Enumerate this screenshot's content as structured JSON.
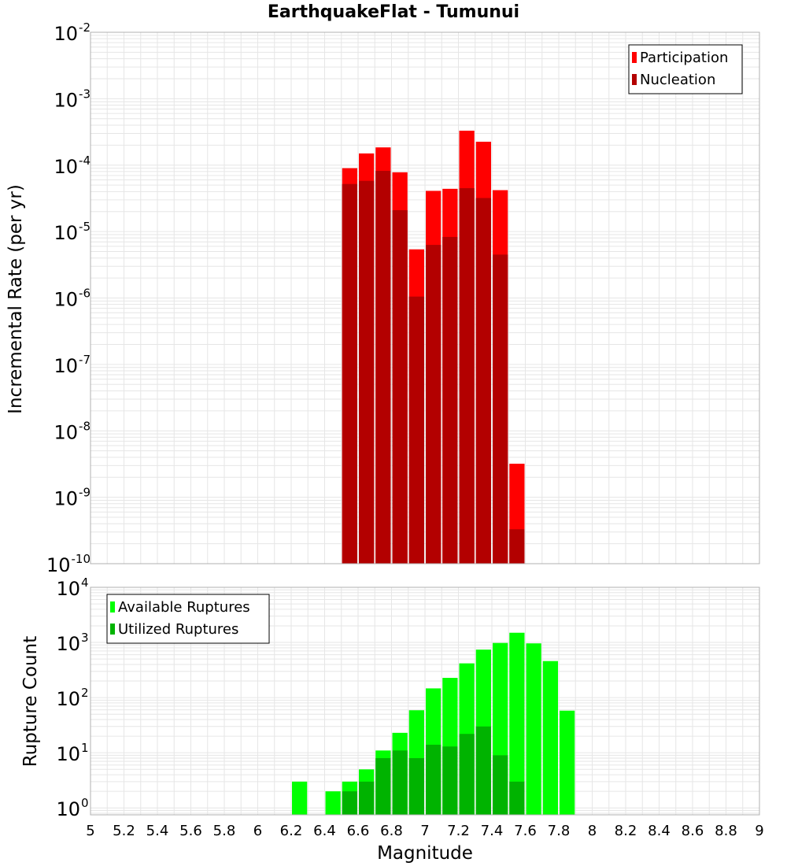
{
  "chart_data": [
    {
      "type": "bar",
      "title": "EarthquakeFlat - Tumunui",
      "xlabel": "",
      "ylabel": "Incremental Rate (per yr)",
      "y_scale": "log",
      "ylim": [
        1e-10,
        0.01
      ],
      "xlim": [
        5,
        9
      ],
      "grid": true,
      "legend_position": "top-right",
      "bin_width": 0.1,
      "x": [
        6.55,
        6.65,
        6.75,
        6.85,
        6.95,
        7.05,
        7.15,
        7.25,
        7.35,
        7.45,
        7.55
      ],
      "series": [
        {
          "name": "Participation",
          "color": "#ff0000",
          "values": [
            9e-05,
            0.00015,
            0.000185,
            7.8e-05,
            5.4e-06,
            4.1e-05,
            4.4e-05,
            0.00033,
            0.000225,
            4.2e-05,
            3.2e-09
          ]
        },
        {
          "name": "Nucleation",
          "color": "#b30000",
          "values": [
            5.2e-05,
            5.8e-05,
            8.2e-05,
            2.1e-05,
            1.05e-06,
            6.3e-06,
            8.3e-06,
            4.5e-05,
            3.2e-05,
            4.5e-06,
            3.3e-10
          ]
        }
      ],
      "y_ticks": [
        {
          "base": "10",
          "exp": "-2",
          "value": 0.01
        },
        {
          "base": "10",
          "exp": "-3",
          "value": 0.001
        },
        {
          "base": "10",
          "exp": "-4",
          "value": 0.0001
        },
        {
          "base": "10",
          "exp": "-5",
          "value": 1e-05
        },
        {
          "base": "10",
          "exp": "-6",
          "value": 1e-06
        },
        {
          "base": "10",
          "exp": "-7",
          "value": 1e-07
        },
        {
          "base": "10",
          "exp": "-8",
          "value": 1e-08
        },
        {
          "base": "10",
          "exp": "-9",
          "value": 1e-09
        },
        {
          "base": "10",
          "exp": "-10",
          "value": 1e-10
        }
      ]
    },
    {
      "type": "bar",
      "title": "",
      "xlabel": "Magnitude",
      "ylabel": "Rupture Count",
      "y_scale": "log",
      "ylim": [
        0.75,
        10000
      ],
      "xlim": [
        5,
        9
      ],
      "grid": true,
      "legend_position": "top-left",
      "bin_width": 0.1,
      "x": [
        6.25,
        6.35,
        6.45,
        6.55,
        6.65,
        6.75,
        6.85,
        6.95,
        7.05,
        7.15,
        7.25,
        7.35,
        7.45,
        7.55,
        7.65,
        7.75,
        7.85
      ],
      "series": [
        {
          "name": "Available Ruptures",
          "color": "#00ff00",
          "values": [
            3,
            0,
            2,
            3,
            5,
            11,
            23,
            59,
            147,
            228,
            418,
            742,
            979,
            1500,
            963,
            460,
            58
          ]
        },
        {
          "name": "Utilized Ruptures",
          "color": "#00b300",
          "values": [
            0,
            0,
            0,
            2,
            3,
            8,
            11,
            8,
            14,
            13,
            22,
            30,
            9,
            3,
            0,
            0,
            0
          ]
        }
      ],
      "y_ticks": [
        {
          "base": "10",
          "exp": "4",
          "value": 10000
        },
        {
          "base": "10",
          "exp": "3",
          "value": 1000
        },
        {
          "base": "10",
          "exp": "2",
          "value": 100
        },
        {
          "base": "10",
          "exp": "1",
          "value": 10
        },
        {
          "base": "10",
          "exp": "0",
          "value": 1
        }
      ],
      "x_ticks": [
        "5",
        "5.2",
        "5.4",
        "5.6",
        "5.8",
        "6",
        "6.2",
        "6.4",
        "6.6",
        "6.8",
        "7",
        "7.2",
        "7.4",
        "7.6",
        "7.8",
        "8",
        "8.2",
        "8.4",
        "8.6",
        "8.8",
        "9"
      ]
    }
  ],
  "colors": {
    "grid": "#e6e6e6",
    "frame": "#b0b0b0",
    "legend_border": "#000000"
  }
}
